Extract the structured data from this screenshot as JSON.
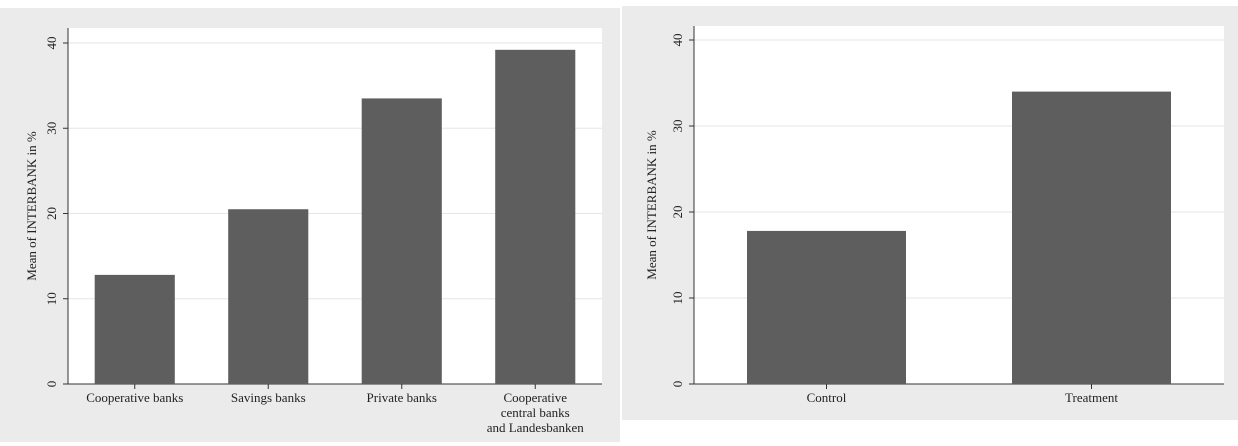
{
  "colors": {
    "outer_background": "#ebebeb",
    "plot_background": "#ffffff",
    "bar": "#5e5e5e",
    "gridline": "#e6e6e6",
    "axis": "#333333"
  },
  "chart_data": [
    {
      "type": "bar",
      "title": "",
      "xlabel": "",
      "ylabel": "Mean of INTERBANK in %",
      "ylim": [
        0,
        40
      ],
      "yticks": [
        "0",
        "10",
        "20",
        "30",
        "40"
      ],
      "grid": true,
      "categories": [
        "Cooperative banks",
        "Savings banks",
        "Private banks",
        "Cooperative central banks and Landesbanken"
      ],
      "category_label_lines": [
        [
          "Cooperative banks"
        ],
        [
          "Savings banks"
        ],
        [
          "Private banks"
        ],
        [
          "Cooperative",
          "central banks",
          "and Landesbanken"
        ]
      ],
      "values": [
        12.8,
        20.5,
        33.5,
        39.2
      ]
    },
    {
      "type": "bar",
      "title": "",
      "xlabel": "",
      "ylabel": "Mean of INTERBANK in %",
      "ylim": [
        0,
        40
      ],
      "yticks": [
        "0",
        "10",
        "20",
        "30",
        "40"
      ],
      "grid": true,
      "categories": [
        "Control",
        "Treatment"
      ],
      "category_label_lines": [
        [
          "Control"
        ],
        [
          "Treatment"
        ]
      ],
      "values": [
        17.8,
        34.0
      ]
    }
  ]
}
